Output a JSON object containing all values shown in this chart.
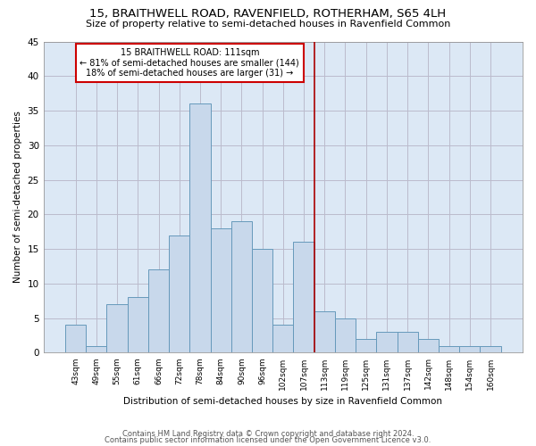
{
  "title": "15, BRAITHWELL ROAD, RAVENFIELD, ROTHERHAM, S65 4LH",
  "subtitle": "Size of property relative to semi-detached houses in Ravenfield Common",
  "xlabel": "Distribution of semi-detached houses by size in Ravenfield Common",
  "ylabel": "Number of semi-detached properties",
  "bar_color": "#c8d8eb",
  "bar_edge_color": "#6699bb",
  "categories": [
    "43sqm",
    "49sqm",
    "55sqm",
    "61sqm",
    "66sqm",
    "72sqm",
    "78sqm",
    "84sqm",
    "90sqm",
    "96sqm",
    "102sqm",
    "107sqm",
    "113sqm",
    "119sqm",
    "125sqm",
    "131sqm",
    "137sqm",
    "142sqm",
    "148sqm",
    "154sqm",
    "160sqm"
  ],
  "values": [
    4,
    1,
    7,
    8,
    12,
    17,
    36,
    18,
    19,
    15,
    4,
    16,
    6,
    5,
    2,
    3,
    3,
    2,
    1,
    1,
    1
  ],
  "property_label": "15 BRAITHWELL ROAD: 111sqm",
  "pct_smaller": 81,
  "n_smaller": 144,
  "pct_larger": 18,
  "n_larger": 31,
  "vline_pos": 11.5,
  "ylim": [
    0,
    45
  ],
  "yticks": [
    0,
    5,
    10,
    15,
    20,
    25,
    30,
    35,
    40,
    45
  ],
  "grid_color": "#bbbbcc",
  "bg_color": "#dce8f5",
  "annotation_box_color": "#cc0000",
  "vline_color": "#aa0000",
  "footnote1": "Contains HM Land Registry data © Crown copyright and database right 2024.",
  "footnote2": "Contains public sector information licensed under the Open Government Licence v3.0."
}
